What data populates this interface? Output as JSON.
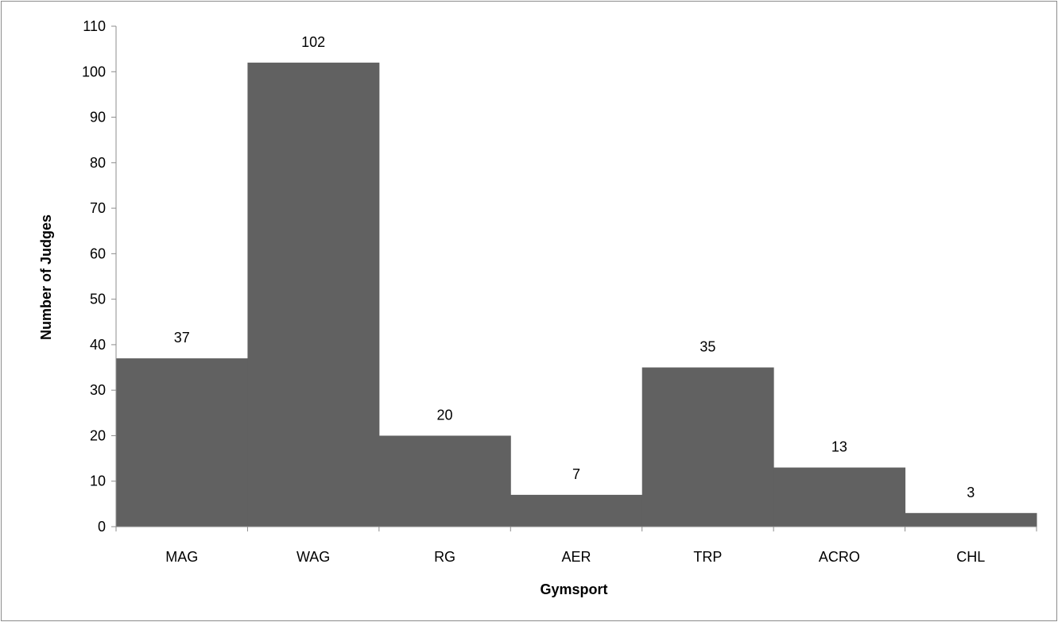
{
  "chart_data": {
    "type": "bar",
    "title": "",
    "xlabel": "Gymsport",
    "ylabel": "Number of Judges",
    "categories": [
      "MAG",
      "WAG",
      "RG",
      "AER",
      "TRP",
      "ACRO",
      "CHL"
    ],
    "values": [
      37,
      102,
      20,
      7,
      35,
      13,
      3
    ],
    "data_labels": [
      "37",
      "102",
      "20",
      "7",
      "35",
      "13",
      "3"
    ],
    "ylim": [
      0,
      110
    ],
    "yticks": [
      0,
      10,
      20,
      30,
      40,
      50,
      60,
      70,
      80,
      90,
      100,
      110
    ],
    "grid": false,
    "legend": "none",
    "bar_color": "#616161",
    "bar_gap": 0
  }
}
